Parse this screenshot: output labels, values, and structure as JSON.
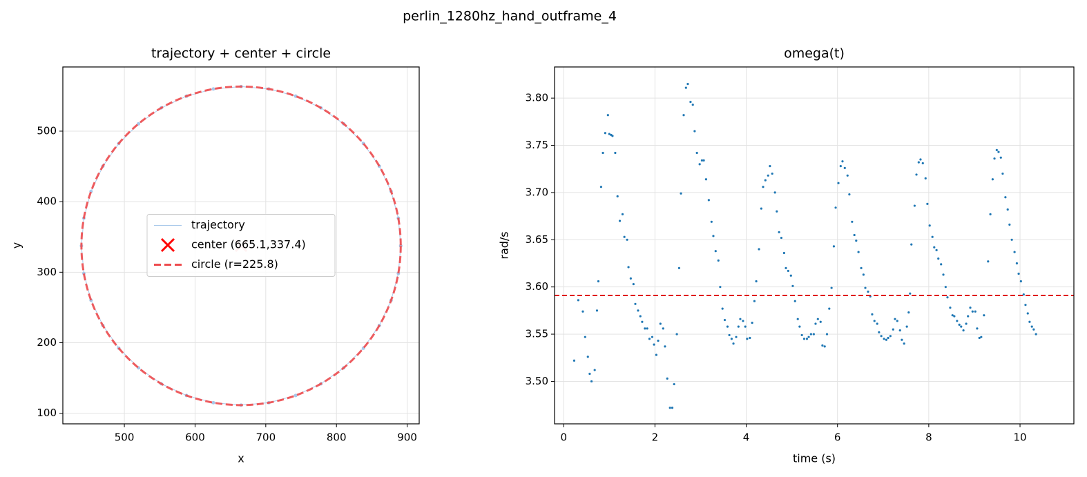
{
  "title": "perlin_1280hz_hand_outframe_4",
  "chart_data": [
    {
      "type": "trajectory",
      "title": "trajectory + center + circle",
      "xlabel": "x",
      "ylabel": "y",
      "xlim": [
        413,
        917
      ],
      "ylim": [
        85,
        591
      ],
      "xticks": [
        500,
        600,
        700,
        800,
        900
      ],
      "yticks": [
        100,
        200,
        300,
        400,
        500
      ],
      "grid": true,
      "legend": "center",
      "series": [
        {
          "name": "trajectory",
          "color": "#a6c8ea",
          "x": [
            890.9,
            887.5,
            877.3,
            860.6,
            838.1,
            810.2,
            778.0,
            742.3,
            704.3,
            665.1,
            625.9,
            587.9,
            552.2,
            520.0,
            492.1,
            469.6,
            452.9,
            442.7,
            439.3,
            442.7,
            452.9,
            469.6,
            492.1,
            520.0,
            552.2,
            587.9,
            625.9,
            665.1,
            704.3,
            742.3,
            778.0,
            810.2,
            838.1,
            860.6,
            877.3,
            887.5,
            890.9
          ],
          "y": [
            337.4,
            376.6,
            414.6,
            450.3,
            482.5,
            510.4,
            533.0,
            549.6,
            559.8,
            563.2,
            559.8,
            549.6,
            533.0,
            510.4,
            482.5,
            450.3,
            414.6,
            376.6,
            337.4,
            298.2,
            260.2,
            224.5,
            192.3,
            164.4,
            141.8,
            125.2,
            115.0,
            111.6,
            115.0,
            125.2,
            141.8,
            164.4,
            192.3,
            224.5,
            260.2,
            298.2,
            337.4
          ]
        },
        {
          "name": "center (665.1,337.4)",
          "color": "#ff0000",
          "x": [
            665.1
          ],
          "y": [
            337.4
          ]
        },
        {
          "name": "circle (r=225.8)",
          "color": "#ee4b4e",
          "r": 225.8
        }
      ]
    },
    {
      "type": "scatter",
      "title": "omega(t)",
      "xlabel": "time (s)",
      "ylabel": "rad/s",
      "xlim": [
        -0.2,
        11.18
      ],
      "ylim": [
        3.455,
        3.833
      ],
      "xticks": [
        0,
        2,
        4,
        6,
        8,
        10
      ],
      "yticks": [
        {
          "value": 3.5,
          "label": "3.50"
        },
        {
          "value": 3.55,
          "label": "3.55"
        },
        {
          "value": 3.6,
          "label": "3.60"
        },
        {
          "value": 3.65,
          "label": "3.65"
        },
        {
          "value": 3.7,
          "label": "3.70"
        },
        {
          "value": 3.75,
          "label": "3.75"
        },
        {
          "value": 3.8,
          "label": "3.80"
        }
      ],
      "grid": true,
      "hline": {
        "value": 3.591,
        "color": "#e01010"
      },
      "series": [
        {
          "color": "#1f77b4",
          "x": [
            0.23,
            0.32,
            0.42,
            0.47,
            0.53,
            0.57,
            0.61,
            0.68,
            0.73,
            0.76,
            0.82,
            0.86,
            0.91,
            0.97,
            1.0,
            1.04,
            1.07,
            1.13,
            1.18,
            1.23,
            1.29,
            1.33,
            1.39,
            1.42,
            1.47,
            1.53,
            1.57,
            1.63,
            1.68,
            1.72,
            1.78,
            1.83,
            1.88,
            1.94,
            1.98,
            2.03,
            2.07,
            2.12,
            2.18,
            2.22,
            2.27,
            2.33,
            2.38,
            2.42,
            2.48,
            2.53,
            2.57,
            2.63,
            2.68,
            2.72,
            2.78,
            2.83,
            2.87,
            2.92,
            2.98,
            3.03,
            3.07,
            3.12,
            3.18,
            3.24,
            3.28,
            3.33,
            3.39,
            3.43,
            3.48,
            3.53,
            3.59,
            3.63,
            3.68,
            3.72,
            3.78,
            3.83,
            3.87,
            3.93,
            3.98,
            4.02,
            4.08,
            4.13,
            4.18,
            4.22,
            4.28,
            4.33,
            4.37,
            4.42,
            4.48,
            4.52,
            4.57,
            4.63,
            4.67,
            4.72,
            4.77,
            4.83,
            4.87,
            4.92,
            4.98,
            5.02,
            5.07,
            5.13,
            5.17,
            5.22,
            5.27,
            5.33,
            5.37,
            5.42,
            5.48,
            5.52,
            5.57,
            5.63,
            5.67,
            5.72,
            5.77,
            5.82,
            5.87,
            5.92,
            5.96,
            6.02,
            6.07,
            6.11,
            6.16,
            6.22,
            6.26,
            6.32,
            6.37,
            6.41,
            6.46,
            6.52,
            6.57,
            6.61,
            6.67,
            6.72,
            6.76,
            6.81,
            6.87,
            6.91,
            6.96,
            7.02,
            7.07,
            7.11,
            7.16,
            7.22,
            7.26,
            7.31,
            7.37,
            7.41,
            7.46,
            7.52,
            7.56,
            7.59,
            7.62,
            7.69,
            7.73,
            7.78,
            7.82,
            7.87,
            7.93,
            7.97,
            8.02,
            8.08,
            8.12,
            8.17,
            8.21,
            8.27,
            8.32,
            8.37,
            8.41,
            8.47,
            8.52,
            8.56,
            8.62,
            8.67,
            8.71,
            8.76,
            8.82,
            8.86,
            8.91,
            8.96,
            9.02,
            9.06,
            9.11,
            9.15,
            9.21,
            9.3,
            9.35,
            9.4,
            9.44,
            9.49,
            9.53,
            9.58,
            9.62,
            9.68,
            9.73,
            9.77,
            9.82,
            9.88,
            9.93,
            9.97,
            10.02,
            10.08,
            10.12,
            10.17,
            10.21,
            10.26,
            10.3,
            10.35
          ],
          "y": [
            3.522,
            3.586,
            3.574,
            3.547,
            3.526,
            3.508,
            3.5,
            3.512,
            3.575,
            3.606,
            3.706,
            3.742,
            3.763,
            3.782,
            3.762,
            3.761,
            3.76,
            3.742,
            3.696,
            3.67,
            3.677,
            3.653,
            3.65,
            3.621,
            3.609,
            3.603,
            3.582,
            3.575,
            3.569,
            3.563,
            3.556,
            3.556,
            3.545,
            3.547,
            3.539,
            3.528,
            3.543,
            3.561,
            3.556,
            3.537,
            3.503,
            3.472,
            3.472,
            3.497,
            3.55,
            3.62,
            3.699,
            3.782,
            3.811,
            3.815,
            3.796,
            3.793,
            3.765,
            3.742,
            3.73,
            3.734,
            3.734,
            3.714,
            3.692,
            3.669,
            3.654,
            3.638,
            3.628,
            3.6,
            3.577,
            3.565,
            3.558,
            3.549,
            3.545,
            3.54,
            3.547,
            3.558,
            3.566,
            3.564,
            3.558,
            3.545,
            3.546,
            3.562,
            3.585,
            3.606,
            3.64,
            3.683,
            3.706,
            3.713,
            3.718,
            3.728,
            3.72,
            3.7,
            3.68,
            3.658,
            3.652,
            3.636,
            3.62,
            3.617,
            3.612,
            3.601,
            3.585,
            3.566,
            3.558,
            3.549,
            3.545,
            3.545,
            3.547,
            3.55,
            3.55,
            3.561,
            3.566,
            3.563,
            3.538,
            3.537,
            3.55,
            3.577,
            3.599,
            3.643,
            3.684,
            3.71,
            3.728,
            3.733,
            3.726,
            3.718,
            3.698,
            3.669,
            3.655,
            3.649,
            3.637,
            3.62,
            3.613,
            3.599,
            3.595,
            3.59,
            3.571,
            3.564,
            3.561,
            3.552,
            3.548,
            3.545,
            3.544,
            3.546,
            3.548,
            3.555,
            3.566,
            3.564,
            3.554,
            3.544,
            3.54,
            3.558,
            3.573,
            3.593,
            3.645,
            3.686,
            3.719,
            3.732,
            3.735,
            3.731,
            3.715,
            3.688,
            3.665,
            3.653,
            3.642,
            3.639,
            3.63,
            3.624,
            3.613,
            3.6,
            3.589,
            3.578,
            3.57,
            3.569,
            3.564,
            3.56,
            3.558,
            3.554,
            3.561,
            3.569,
            3.578,
            3.574,
            3.574,
            3.556,
            3.546,
            3.547,
            3.57,
            3.627,
            3.677,
            3.714,
            3.736,
            3.745,
            3.743,
            3.737,
            3.72,
            3.695,
            3.682,
            3.666,
            3.65,
            3.637,
            3.625,
            3.614,
            3.606,
            3.592,
            3.581,
            3.572,
            3.563,
            3.558,
            3.555,
            3.55
          ]
        }
      ]
    }
  ]
}
